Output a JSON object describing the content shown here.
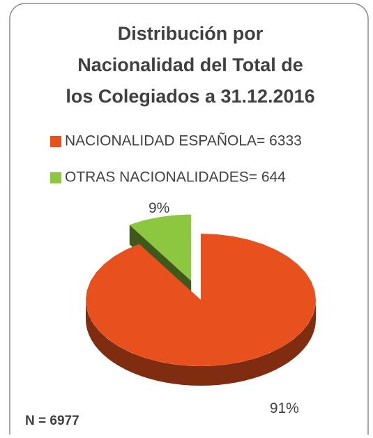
{
  "chart_data": {
    "type": "pie",
    "title": [
      "Distribución por",
      "Nacionalidad del Total de",
      "los Colegiados a 31.12.2016"
    ],
    "categories": [
      "NACIONALIDAD ESPAÑOLA= 6333",
      "OTRAS NACIONALIDADES= 644"
    ],
    "values": [
      91,
      9
    ],
    "value_labels": [
      "91%",
      "9%"
    ],
    "colors": [
      "#e8501e",
      "#8dc63f"
    ],
    "explode": [
      false,
      true
    ],
    "legend": "top",
    "annotation": "N = 6977"
  }
}
